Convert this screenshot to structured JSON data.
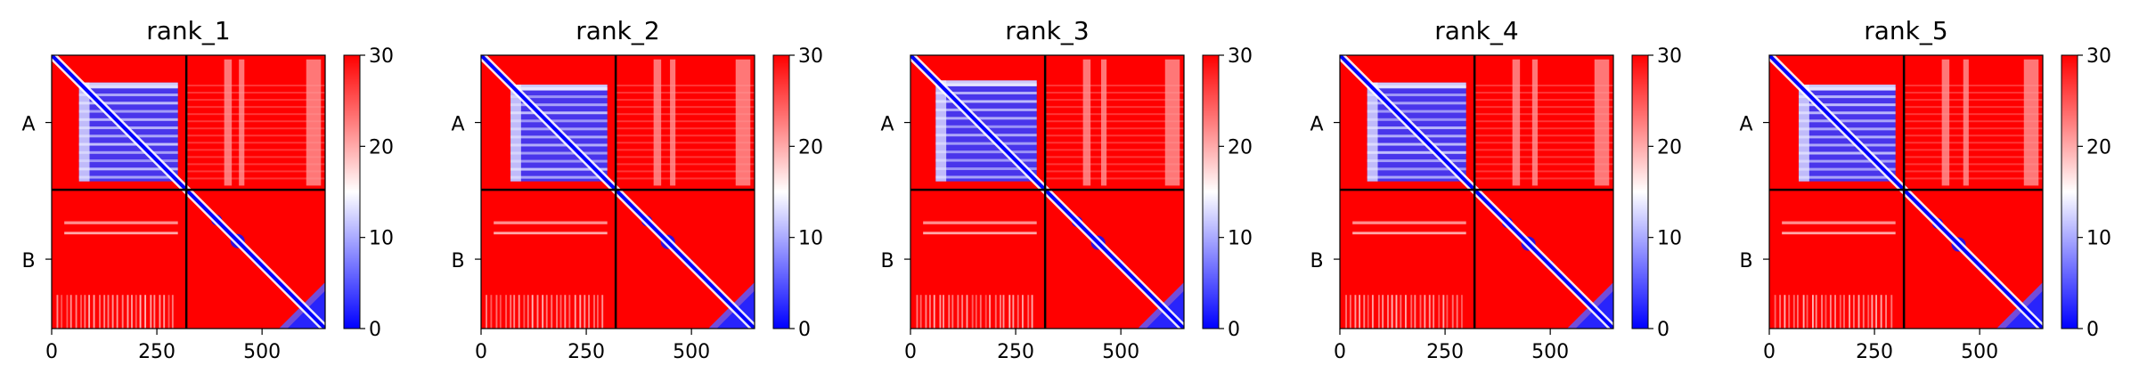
{
  "chart_data": [
    {
      "type": "heatmap",
      "title": "rank_1",
      "chains": [
        "A",
        "B"
      ],
      "chain_boundary": 320,
      "x_range": [
        0,
        650
      ],
      "x_ticks": [
        0,
        250,
        500
      ],
      "x_tick_labels": [
        "0",
        "250",
        "500"
      ],
      "colorbar": {
        "min": 0,
        "max": 30,
        "ticks": [
          0,
          10,
          20,
          30
        ],
        "tick_labels": [
          "0",
          "10",
          "20",
          "30"
        ],
        "colors": [
          "#0000ff",
          "#ffffff",
          "#ff0000"
        ]
      },
      "variant": 1
    },
    {
      "type": "heatmap",
      "title": "rank_2",
      "chains": [
        "A",
        "B"
      ],
      "chain_boundary": 320,
      "x_range": [
        0,
        650
      ],
      "x_ticks": [
        0,
        250,
        500
      ],
      "x_tick_labels": [
        "0",
        "250",
        "500"
      ],
      "colorbar": {
        "min": 0,
        "max": 30,
        "ticks": [
          0,
          10,
          20,
          30
        ],
        "tick_labels": [
          "0",
          "10",
          "20",
          "30"
        ],
        "colors": [
          "#0000ff",
          "#ffffff",
          "#ff0000"
        ]
      },
      "variant": 2
    },
    {
      "type": "heatmap",
      "title": "rank_3",
      "chains": [
        "A",
        "B"
      ],
      "chain_boundary": 320,
      "x_range": [
        0,
        650
      ],
      "x_ticks": [
        0,
        250,
        500
      ],
      "x_tick_labels": [
        "0",
        "250",
        "500"
      ],
      "colorbar": {
        "min": 0,
        "max": 30,
        "ticks": [
          0,
          10,
          20,
          30
        ],
        "tick_labels": [
          "0",
          "10",
          "20",
          "30"
        ],
        "colors": [
          "#0000ff",
          "#ffffff",
          "#ff0000"
        ]
      },
      "variant": 3
    },
    {
      "type": "heatmap",
      "title": "rank_4",
      "chains": [
        "A",
        "B"
      ],
      "chain_boundary": 320,
      "x_range": [
        0,
        650
      ],
      "x_ticks": [
        0,
        250,
        500
      ],
      "x_tick_labels": [
        "0",
        "250",
        "500"
      ],
      "colorbar": {
        "min": 0,
        "max": 30,
        "ticks": [
          0,
          10,
          20,
          30
        ],
        "tick_labels": [
          "0",
          "10",
          "20",
          "30"
        ],
        "colors": [
          "#0000ff",
          "#ffffff",
          "#ff0000"
        ]
      },
      "variant": 4
    },
    {
      "type": "heatmap",
      "title": "rank_5",
      "chains": [
        "A",
        "B"
      ],
      "chain_boundary": 320,
      "x_range": [
        0,
        650
      ],
      "x_ticks": [
        0,
        250,
        500
      ],
      "x_tick_labels": [
        "0",
        "250",
        "500"
      ],
      "colorbar": {
        "min": 0,
        "max": 30,
        "ticks": [
          0,
          10,
          20,
          30
        ],
        "tick_labels": [
          "0",
          "10",
          "20",
          "30"
        ],
        "colors": [
          "#0000ff",
          "#ffffff",
          "#ff0000"
        ]
      },
      "variant": 5
    }
  ]
}
